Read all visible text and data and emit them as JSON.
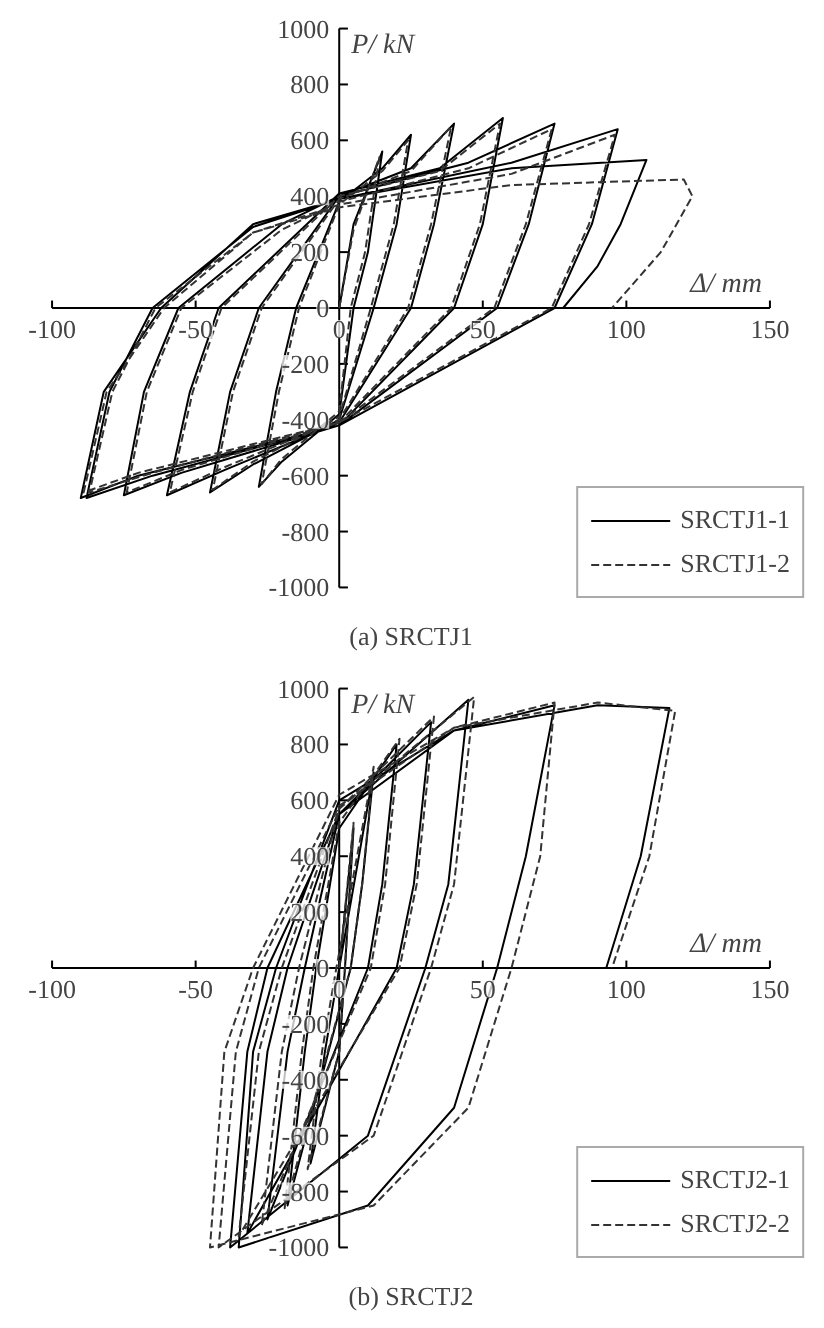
{
  "chart_data": [
    {
      "type": "line",
      "title": "(a) SRCTJ1",
      "xlabel": "Δ/ mm",
      "ylabel": "P/ kN",
      "xlim": [
        -100,
        150
      ],
      "ylim": [
        -1000,
        1000
      ],
      "xticks": [
        -100,
        -50,
        0,
        50,
        100,
        150
      ],
      "yticks": [
        -1000,
        -800,
        -600,
        -400,
        -200,
        0,
        200,
        400,
        600,
        800,
        1000
      ],
      "grid": false,
      "legend": "bottom right",
      "marker": "none",
      "series": [
        {
          "name": "SRCTJ1-1",
          "color": "#000000",
          "line_style": "solid",
          "x": [
            0,
            5,
            15,
            10,
            5,
            0,
            -20,
            -28,
            -22,
            -15,
            0,
            15,
            25,
            20,
            12,
            0,
            -30,
            -45,
            -38,
            -28,
            0,
            25,
            40,
            33,
            25,
            0,
            -40,
            -60,
            -52,
            -42,
            0,
            35,
            57,
            50,
            40,
            0,
            -55,
            -75,
            -68,
            -56,
            -20,
            0,
            45,
            75,
            66,
            55,
            0,
            -65,
            -88,
            -80,
            -65,
            -30,
            0,
            60,
            97,
            88,
            75,
            0,
            -70,
            -90,
            -82,
            -62,
            -30,
            0,
            60,
            107,
            98,
            90,
            78
          ],
          "values": [
            0,
            300,
            560,
            200,
            0,
            -380,
            -550,
            -640,
            -300,
            0,
            380,
            500,
            620,
            300,
            0,
            -400,
            -560,
            -660,
            -300,
            0,
            400,
            500,
            660,
            300,
            0,
            -410,
            -580,
            -670,
            -300,
            0,
            410,
            500,
            680,
            300,
            0,
            -420,
            -590,
            -670,
            -300,
            0,
            300,
            400,
            520,
            660,
            300,
            0,
            -420,
            -600,
            -680,
            -300,
            0,
            290,
            390,
            520,
            640,
            300,
            0,
            -420,
            -600,
            -680,
            -300,
            0,
            300,
            390,
            500,
            530,
            300,
            150,
            0
          ]
        },
        {
          "name": "SRCTJ1-2",
          "color": "#333333",
          "line_style": "dashed",
          "x": [
            0,
            5,
            14,
            9,
            4,
            0,
            -20,
            -27,
            -21,
            -14,
            0,
            15,
            24,
            19,
            11,
            0,
            -30,
            -44,
            -37,
            -27,
            0,
            25,
            39,
            32,
            24,
            0,
            -40,
            -59,
            -51,
            -41,
            0,
            35,
            56,
            49,
            39,
            0,
            -55,
            -74,
            -67,
            -55,
            -20,
            0,
            45,
            74,
            65,
            54,
            0,
            -65,
            -87,
            -79,
            -64,
            -30,
            0,
            60,
            96,
            87,
            74,
            0,
            -70,
            -89,
            -81,
            -61,
            -30,
            0,
            60,
            120,
            123,
            112,
            95
          ],
          "values": [
            0,
            280,
            540,
            200,
            0,
            -370,
            -540,
            -630,
            -300,
            0,
            370,
            490,
            600,
            300,
            0,
            -390,
            -550,
            -650,
            -300,
            0,
            390,
            490,
            650,
            300,
            0,
            -400,
            -570,
            -660,
            -300,
            0,
            400,
            490,
            660,
            300,
            0,
            -410,
            -580,
            -660,
            -300,
            0,
            280,
            380,
            500,
            640,
            300,
            0,
            -410,
            -590,
            -660,
            -300,
            0,
            270,
            370,
            480,
            620,
            300,
            0,
            -410,
            -590,
            -660,
            -300,
            0,
            270,
            360,
            440,
            460,
            400,
            200,
            0
          ]
        }
      ]
    },
    {
      "type": "line",
      "title": "(b) SRCTJ2",
      "xlabel": "Δ/ mm",
      "ylabel": "P/ kN",
      "xlim": [
        -100,
        150
      ],
      "ylim": [
        -1000,
        1000
      ],
      "xticks": [
        -100,
        -50,
        0,
        50,
        100,
        150
      ],
      "yticks": [
        -1000,
        -800,
        -600,
        -400,
        -200,
        0,
        200,
        400,
        600,
        800,
        1000
      ],
      "grid": false,
      "legend": "bottom right",
      "marker": "none",
      "series": [
        {
          "name": "SRCTJ2-1",
          "color": "#000000",
          "line_style": "solid",
          "x": [
            0,
            5,
            2,
            0,
            -10,
            -5,
            0,
            12,
            8,
            4,
            -18,
            -12,
            -8,
            0,
            20,
            15,
            10,
            -25,
            -18,
            -12,
            0,
            32,
            26,
            20,
            -32,
            -25,
            -18,
            0,
            45,
            38,
            30,
            10,
            -38,
            -32,
            -25,
            0,
            40,
            75,
            65,
            55,
            40,
            10,
            -35,
            -30,
            -22,
            0,
            40,
            90,
            115,
            105,
            93
          ],
          "values": [
            0,
            500,
            0,
            -300,
            -700,
            -300,
            0,
            700,
            300,
            0,
            -850,
            -300,
            0,
            500,
            800,
            300,
            0,
            -900,
            -300,
            0,
            550,
            880,
            300,
            0,
            -950,
            -300,
            0,
            550,
            960,
            300,
            0,
            -600,
            -1000,
            -300,
            0,
            550,
            850,
            940,
            400,
            0,
            -500,
            -850,
            -1000,
            -300,
            0,
            600,
            850,
            940,
            930,
            400,
            0
          ]
        },
        {
          "name": "SRCTJ2-2",
          "color": "#333333",
          "line_style": "dashed",
          "x": [
            0,
            5,
            2,
            0,
            -11,
            -6,
            -1,
            12,
            8,
            4,
            -19,
            -13,
            -9,
            0,
            21,
            16,
            11,
            -27,
            -20,
            -14,
            0,
            33,
            27,
            21,
            -35,
            -28,
            -20,
            0,
            47,
            40,
            32,
            12,
            -42,
            -36,
            -28,
            0,
            40,
            75,
            70,
            60,
            45,
            12,
            -45,
            -40,
            -30,
            0,
            40,
            90,
            117,
            108,
            95
          ],
          "values": [
            0,
            520,
            0,
            -300,
            -720,
            -300,
            0,
            720,
            300,
            0,
            -860,
            -300,
            0,
            520,
            820,
            300,
            0,
            -920,
            -300,
            0,
            570,
            900,
            300,
            0,
            -960,
            -300,
            0,
            570,
            970,
            300,
            0,
            -600,
            -1000,
            -300,
            0,
            580,
            860,
            950,
            400,
            0,
            -500,
            -850,
            -1000,
            -300,
            0,
            620,
            860,
            950,
            920,
            400,
            0
          ]
        }
      ]
    }
  ]
}
